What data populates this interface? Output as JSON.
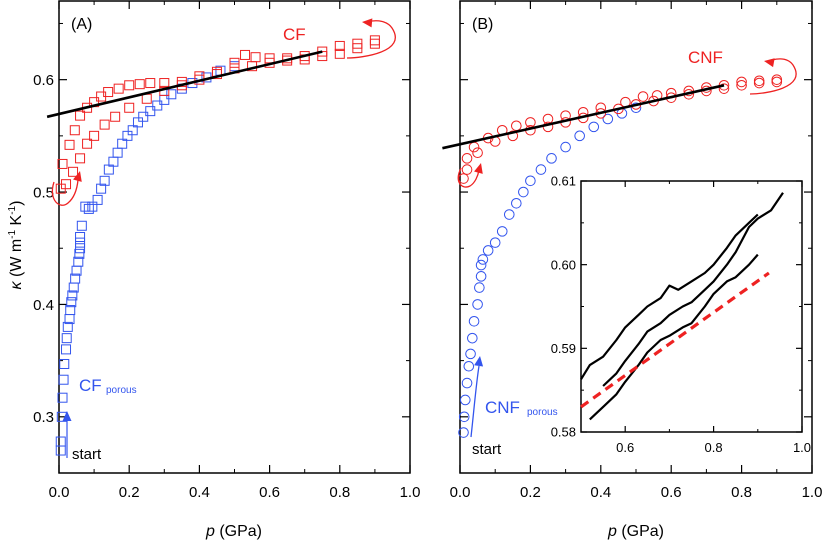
{
  "chart_data": [
    {
      "type": "scatter",
      "panel_label": "(A)",
      "xlabel": "p (GPa)",
      "ylabel": "κ (W m-1 K-1)",
      "ylabel_parts": {
        "kappa": "κ",
        "open": " (W m",
        "exp1": "-1",
        "mid": " K",
        "exp2": "-1",
        "close": ")"
      },
      "xlabel_parts": {
        "p": "p",
        "rest": " (GPa)"
      },
      "xlim": [
        0,
        1.0
      ],
      "ylim": [
        0.25,
        0.67
      ],
      "xticks": [
        "0.0",
        "0.2",
        "0.4",
        "0.6",
        "0.8",
        "1.0"
      ],
      "yticks": [
        "0.3",
        "0.4",
        "0.5",
        "0.6"
      ],
      "annotations": {
        "start": "start",
        "series_red": "CF",
        "series_blue_main": "CF",
        "series_blue_sub": "porous"
      },
      "series": [
        {
          "name": "CF porous",
          "marker": "square",
          "color": "#3355ee",
          "points": [
            [
              0.005,
              0.27
            ],
            [
              0.005,
              0.278
            ],
            [
              0.008,
              0.3
            ],
            [
              0.01,
              0.317
            ],
            [
              0.013,
              0.333
            ],
            [
              0.015,
              0.347
            ],
            [
              0.02,
              0.36
            ],
            [
              0.022,
              0.37
            ],
            [
              0.025,
              0.38
            ],
            [
              0.03,
              0.387
            ],
            [
              0.032,
              0.395
            ],
            [
              0.035,
              0.402
            ],
            [
              0.038,
              0.408
            ],
            [
              0.042,
              0.415
            ],
            [
              0.046,
              0.423
            ],
            [
              0.05,
              0.43
            ],
            [
              0.055,
              0.438
            ],
            [
              0.058,
              0.445
            ],
            [
              0.06,
              0.45
            ],
            [
              0.06,
              0.455
            ],
            [
              0.06,
              0.46
            ],
            [
              0.065,
              0.47
            ],
            [
              0.075,
              0.487
            ],
            [
              0.085,
              0.485
            ],
            [
              0.095,
              0.487
            ],
            [
              0.11,
              0.493
            ],
            [
              0.12,
              0.503
            ],
            [
              0.13,
              0.51
            ],
            [
              0.142,
              0.52
            ],
            [
              0.155,
              0.527
            ],
            [
              0.167,
              0.535
            ],
            [
              0.18,
              0.543
            ],
            [
              0.195,
              0.55
            ],
            [
              0.21,
              0.555
            ],
            [
              0.225,
              0.562
            ],
            [
              0.24,
              0.567
            ],
            [
              0.26,
              0.572
            ],
            [
              0.28,
              0.577
            ],
            [
              0.3,
              0.582
            ],
            [
              0.32,
              0.587
            ],
            [
              0.35,
              0.592
            ],
            [
              0.38,
              0.597
            ],
            [
              0.42,
              0.602
            ],
            [
              0.46,
              0.608
            ],
            [
              0.5,
              0.612
            ]
          ]
        },
        {
          "name": "CF",
          "marker": "square",
          "color": "#ee2222",
          "points": [
            [
              0.005,
              0.503
            ],
            [
              0.02,
              0.507
            ],
            [
              0.01,
              0.525
            ],
            [
              0.03,
              0.542
            ],
            [
              0.045,
              0.555
            ],
            [
              0.06,
              0.568
            ],
            [
              0.08,
              0.575
            ],
            [
              0.1,
              0.58
            ],
            [
              0.12,
              0.585
            ],
            [
              0.14,
              0.589
            ],
            [
              0.17,
              0.592
            ],
            [
              0.2,
              0.595
            ],
            [
              0.23,
              0.596
            ],
            [
              0.26,
              0.597
            ],
            [
              0.3,
              0.597
            ],
            [
              0.35,
              0.598
            ],
            [
              0.4,
              0.603
            ],
            [
              0.45,
              0.607
            ],
            [
              0.5,
              0.615
            ],
            [
              0.53,
              0.622
            ],
            [
              0.56,
              0.62
            ],
            [
              0.6,
              0.619
            ],
            [
              0.65,
              0.619
            ],
            [
              0.7,
              0.621
            ],
            [
              0.75,
              0.625
            ],
            [
              0.8,
              0.63
            ],
            [
              0.85,
              0.632
            ],
            [
              0.9,
              0.635
            ],
            [
              0.04,
              0.518
            ],
            [
              0.06,
              0.53
            ],
            [
              0.08,
              0.543
            ],
            [
              0.1,
              0.55
            ],
            [
              0.13,
              0.56
            ],
            [
              0.16,
              0.567
            ],
            [
              0.2,
              0.575
            ],
            [
              0.25,
              0.583
            ],
            [
              0.3,
              0.59
            ],
            [
              0.35,
              0.595
            ],
            [
              0.4,
              0.6
            ],
            [
              0.45,
              0.605
            ],
            [
              0.5,
              0.61
            ],
            [
              0.55,
              0.612
            ],
            [
              0.6,
              0.615
            ],
            [
              0.65,
              0.617
            ],
            [
              0.7,
              0.618
            ],
            [
              0.75,
              0.621
            ],
            [
              0.8,
              0.623
            ],
            [
              0.85,
              0.628
            ],
            [
              0.9,
              0.632
            ]
          ]
        },
        {
          "name": "linear fit",
          "marker": "line",
          "color": "#000000",
          "points": [
            [
              -0.034,
              0.567
            ],
            [
              0.75,
              0.625
            ]
          ]
        }
      ]
    },
    {
      "type": "scatter",
      "panel_label": "(B)",
      "xlabel": "p (GPa)",
      "xlabel_parts": {
        "p": "p",
        "rest": " (GPa)"
      },
      "xlim": [
        0,
        1.0
      ],
      "ylim": [
        0.25,
        0.67
      ],
      "xticks": [
        "0.0",
        "0.2",
        "0.4",
        "0.6",
        "0.8",
        "1.0"
      ],
      "annotations": {
        "start": "start",
        "series_red": "CNF",
        "series_blue_main": "CNF",
        "series_blue_sub": "porous"
      },
      "series": [
        {
          "name": "CNF porous",
          "marker": "circle",
          "color": "#3355ee",
          "points": [
            [
              0.01,
              0.286
            ],
            [
              0.012,
              0.3
            ],
            [
              0.015,
              0.315
            ],
            [
              0.02,
              0.33
            ],
            [
              0.025,
              0.345
            ],
            [
              0.03,
              0.356
            ],
            [
              0.035,
              0.37
            ],
            [
              0.04,
              0.385
            ],
            [
              0.05,
              0.4
            ],
            [
              0.055,
              0.415
            ],
            [
              0.06,
              0.425
            ],
            [
              0.06,
              0.435
            ],
            [
              0.065,
              0.44
            ],
            [
              0.08,
              0.448
            ],
            [
              0.1,
              0.455
            ],
            [
              0.12,
              0.465
            ],
            [
              0.14,
              0.48
            ],
            [
              0.16,
              0.49
            ],
            [
              0.18,
              0.5
            ],
            [
              0.2,
              0.51
            ],
            [
              0.23,
              0.52
            ],
            [
              0.26,
              0.53
            ],
            [
              0.3,
              0.54
            ],
            [
              0.34,
              0.55
            ],
            [
              0.38,
              0.558
            ],
            [
              0.42,
              0.565
            ],
            [
              0.46,
              0.57
            ],
            [
              0.5,
              0.575
            ]
          ]
        },
        {
          "name": "CNF",
          "marker": "circle",
          "color": "#ee2222",
          "points": [
            [
              0.01,
              0.512
            ],
            [
              0.02,
              0.53
            ],
            [
              0.04,
              0.54
            ],
            [
              0.08,
              0.548
            ],
            [
              0.12,
              0.555
            ],
            [
              0.16,
              0.559
            ],
            [
              0.2,
              0.562
            ],
            [
              0.25,
              0.565
            ],
            [
              0.3,
              0.568
            ],
            [
              0.35,
              0.571
            ],
            [
              0.4,
              0.575
            ],
            [
              0.47,
              0.58
            ],
            [
              0.52,
              0.585
            ],
            [
              0.56,
              0.586
            ],
            [
              0.6,
              0.588
            ],
            [
              0.65,
              0.59
            ],
            [
              0.7,
              0.593
            ],
            [
              0.75,
              0.595
            ],
            [
              0.8,
              0.598
            ],
            [
              0.85,
              0.599
            ],
            [
              0.9,
              0.6
            ],
            [
              0.02,
              0.52
            ],
            [
              0.05,
              0.535
            ],
            [
              0.1,
              0.545
            ],
            [
              0.15,
              0.55
            ],
            [
              0.2,
              0.555
            ],
            [
              0.25,
              0.558
            ],
            [
              0.3,
              0.562
            ],
            [
              0.35,
              0.566
            ],
            [
              0.4,
              0.57
            ],
            [
              0.45,
              0.574
            ],
            [
              0.5,
              0.578
            ],
            [
              0.55,
              0.581
            ],
            [
              0.6,
              0.584
            ],
            [
              0.65,
              0.587
            ],
            [
              0.7,
              0.59
            ],
            [
              0.75,
              0.592
            ],
            [
              0.8,
              0.595
            ],
            [
              0.85,
              0.597
            ],
            [
              0.9,
              0.598
            ]
          ]
        },
        {
          "name": "linear fit",
          "marker": "line",
          "color": "#000000",
          "points": [
            [
              -0.05,
              0.539
            ],
            [
              0.75,
              0.595
            ]
          ]
        }
      ],
      "inset": {
        "type": "line",
        "xlim": [
          0.5,
          1.0
        ],
        "ylim": [
          0.58,
          0.61
        ],
        "xticks": [
          "0.6",
          "0.8",
          "1.0"
        ],
        "yticks": [
          "0.58",
          "0.59",
          "0.60",
          "0.61"
        ],
        "series": [
          {
            "name": "upper",
            "color": "#000000",
            "points": [
              [
                0.5,
                0.5863
              ],
              [
                0.52,
                0.588
              ],
              [
                0.55,
                0.589
              ],
              [
                0.58,
                0.591
              ],
              [
                0.6,
                0.5925
              ],
              [
                0.63,
                0.594
              ],
              [
                0.65,
                0.595
              ],
              [
                0.68,
                0.596
              ],
              [
                0.7,
                0.5975
              ],
              [
                0.72,
                0.597
              ],
              [
                0.75,
                0.598
              ],
              [
                0.78,
                0.599
              ],
              [
                0.8,
                0.6
              ],
              [
                0.83,
                0.602
              ],
              [
                0.85,
                0.6035
              ],
              [
                0.88,
                0.605
              ],
              [
                0.9,
                0.606
              ]
            ]
          },
          {
            "name": "middle",
            "color": "#000000",
            "points": [
              [
                0.55,
                0.5855
              ],
              [
                0.58,
                0.587
              ],
              [
                0.6,
                0.5885
              ],
              [
                0.63,
                0.5905
              ],
              [
                0.65,
                0.592
              ],
              [
                0.68,
                0.593
              ],
              [
                0.7,
                0.594
              ],
              [
                0.73,
                0.595
              ],
              [
                0.75,
                0.5955
              ],
              [
                0.78,
                0.597
              ],
              [
                0.8,
                0.598
              ],
              [
                0.83,
                0.6
              ],
              [
                0.85,
                0.6015
              ],
              [
                0.88,
                0.6045
              ],
              [
                0.9,
                0.6055
              ],
              [
                0.93,
                0.6065
              ],
              [
                0.957,
                0.6086
              ]
            ]
          },
          {
            "name": "lower",
            "color": "#000000",
            "points": [
              [
                0.52,
                0.5815
              ],
              [
                0.55,
                0.583
              ],
              [
                0.58,
                0.5845
              ],
              [
                0.6,
                0.586
              ],
              [
                0.63,
                0.588
              ],
              [
                0.65,
                0.5895
              ],
              [
                0.68,
                0.591
              ],
              [
                0.7,
                0.5915
              ],
              [
                0.73,
                0.5925
              ],
              [
                0.75,
                0.593
              ],
              [
                0.78,
                0.595
              ],
              [
                0.8,
                0.5965
              ],
              [
                0.83,
                0.598
              ],
              [
                0.85,
                0.5985
              ],
              [
                0.88,
                0.6
              ],
              [
                0.9,
                0.6012
              ]
            ]
          },
          {
            "name": "fit",
            "color": "#ee2222",
            "dashed": true,
            "points": [
              [
                0.5,
                0.583
              ],
              [
                0.925,
                0.599
              ]
            ]
          }
        ]
      }
    }
  ]
}
